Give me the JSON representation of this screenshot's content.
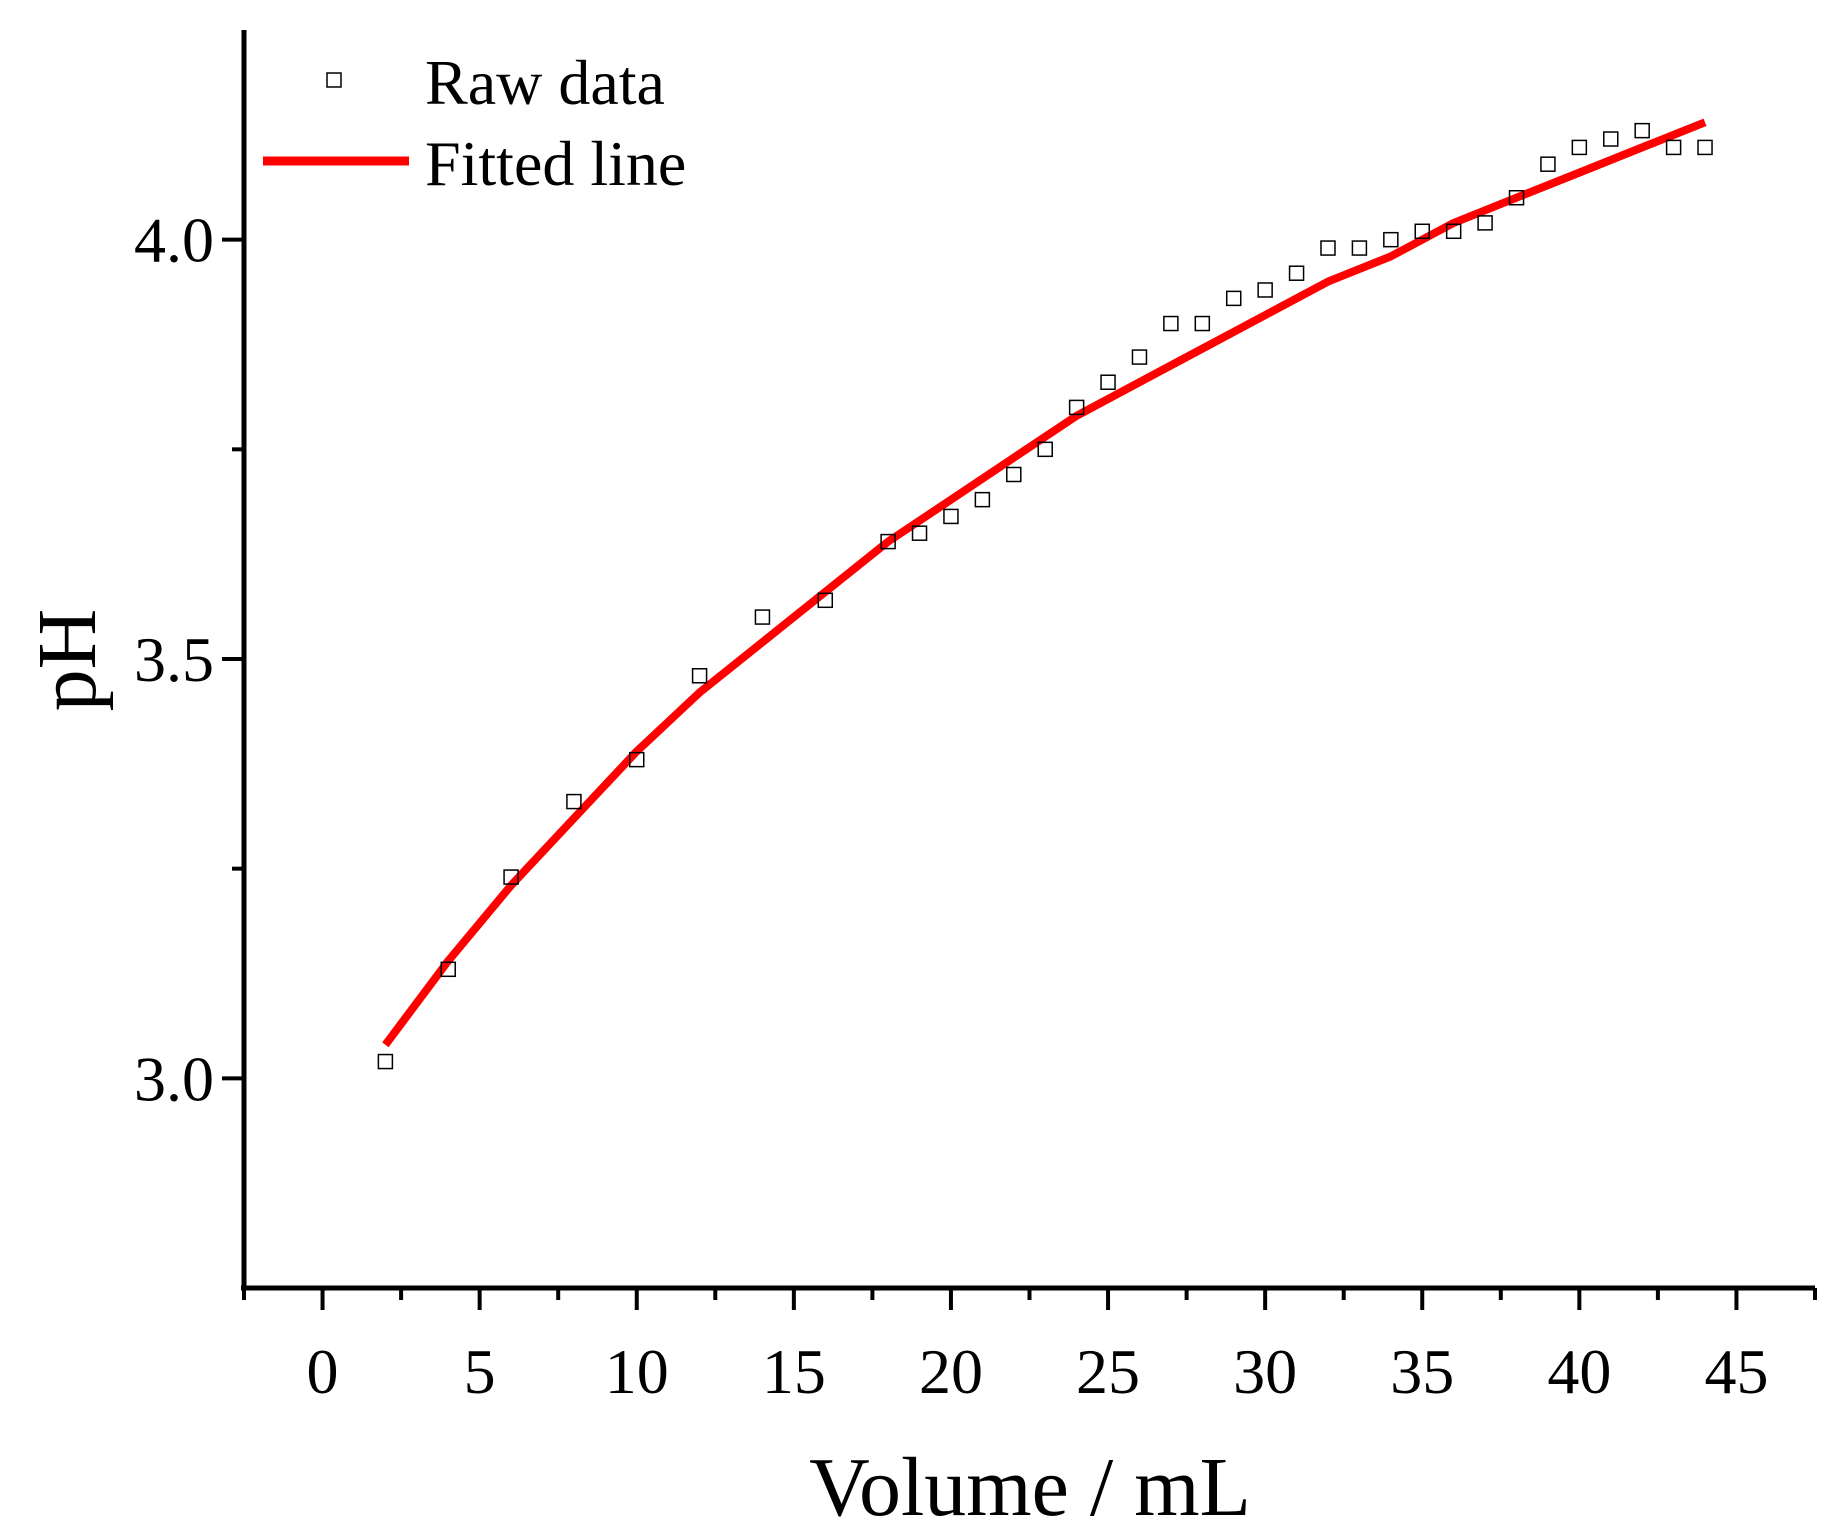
{
  "chart_data": {
    "type": "scatter",
    "title": "",
    "xlabel": "Volume / mL",
    "ylabel": "pH",
    "xlim": [
      -2.5,
      47.5
    ],
    "ylim": [
      2.75,
      4.25
    ],
    "x_ticks": [
      0,
      5,
      10,
      15,
      20,
      25,
      30,
      35,
      40,
      45
    ],
    "x_tick_labels": [
      "0",
      "5",
      "10",
      "15",
      "20",
      "25",
      "30",
      "35",
      "40",
      "45"
    ],
    "x_minor_ticks": [
      -2.5,
      2.5,
      7.5,
      12.5,
      17.5,
      22.5,
      27.5,
      32.5,
      37.5,
      42.5,
      47.5
    ],
    "y_ticks": [
      3.0,
      3.5,
      4.0
    ],
    "y_tick_labels": [
      "3.0",
      "3.5",
      "4.0"
    ],
    "y_minor_ticks": [
      3.25,
      3.75
    ],
    "grid": false,
    "legend_position": "top-left",
    "series": [
      {
        "name": "Raw data",
        "kind": "scatter",
        "marker": "open-square",
        "color": "#000000",
        "x": [
          2,
          4,
          6,
          8,
          10,
          12,
          14,
          16,
          18,
          19,
          20,
          21,
          22,
          23,
          24,
          25,
          26,
          27,
          28,
          29,
          30,
          31,
          32,
          33,
          34,
          35,
          36,
          37,
          38,
          39,
          40,
          41,
          42,
          43,
          44
        ],
        "y": [
          3.02,
          3.13,
          3.24,
          3.33,
          3.38,
          3.48,
          3.55,
          3.57,
          3.64,
          3.65,
          3.67,
          3.69,
          3.72,
          3.75,
          3.8,
          3.83,
          3.86,
          3.9,
          3.9,
          3.93,
          3.94,
          3.96,
          3.99,
          3.99,
          4.0,
          4.01,
          4.01,
          4.02,
          4.05,
          4.09,
          4.11,
          4.12,
          4.13,
          4.11,
          4.11
        ]
      },
      {
        "name": "Fitted line",
        "kind": "line",
        "color": "#ff0000",
        "x": [
          2,
          4,
          6,
          8,
          10,
          12,
          14,
          16,
          18,
          20,
          22,
          24,
          26,
          28,
          30,
          32,
          34,
          36,
          38,
          40,
          42,
          44
        ],
        "y": [
          3.04,
          3.14,
          3.23,
          3.31,
          3.39,
          3.46,
          3.52,
          3.58,
          3.64,
          3.69,
          3.74,
          3.79,
          3.83,
          3.87,
          3.91,
          3.95,
          3.98,
          4.02,
          4.05,
          4.08,
          4.11,
          4.14
        ]
      }
    ]
  }
}
